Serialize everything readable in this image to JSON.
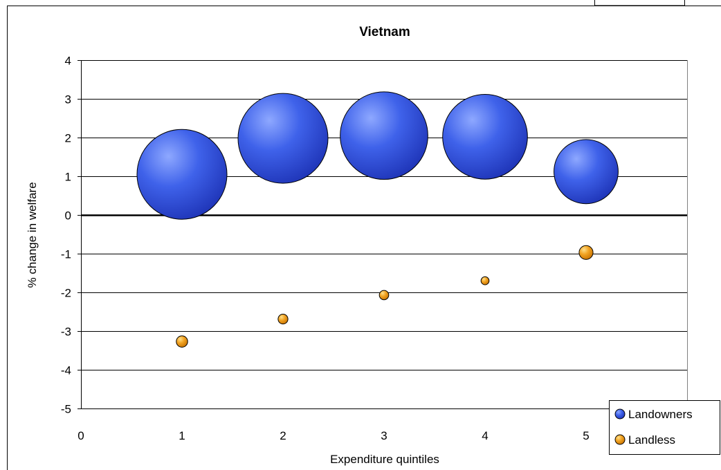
{
  "chart_data": {
    "type": "scatter",
    "subtype": "bubble",
    "title": "Vietnam",
    "xlabel": "Expenditure quintiles",
    "ylabel": "% change in welfare",
    "xlim": [
      0,
      6
    ],
    "ylim": [
      -5,
      4
    ],
    "x_ticks": [
      "0",
      "1",
      "2",
      "3",
      "4",
      "5"
    ],
    "y_ticks": [
      "4",
      "3",
      "2",
      "1",
      "0",
      "-1",
      "-2",
      "-3",
      "-4",
      "-5"
    ],
    "grid": true,
    "legend_position": "bottom-right",
    "series": [
      {
        "name": "Landowners",
        "color": "#3355e0",
        "points": [
          {
            "x": 1,
            "y": 1.05,
            "size": 1.0
          },
          {
            "x": 2,
            "y": 1.98,
            "size": 1.0
          },
          {
            "x": 3,
            "y": 2.05,
            "size": 0.95
          },
          {
            "x": 4,
            "y": 2.02,
            "size": 0.89
          },
          {
            "x": 5,
            "y": 1.12,
            "size": 0.51
          }
        ]
      },
      {
        "name": "Landless",
        "color": "#f0a020",
        "points": [
          {
            "x": 1,
            "y": -3.27,
            "size": 0.016
          },
          {
            "x": 2,
            "y": -2.69,
            "size": 0.012
          },
          {
            "x": 3,
            "y": -2.07,
            "size": 0.011
          },
          {
            "x": 4,
            "y": -1.7,
            "size": 0.008
          },
          {
            "x": 5,
            "y": -0.97,
            "size": 0.024
          }
        ]
      }
    ]
  }
}
